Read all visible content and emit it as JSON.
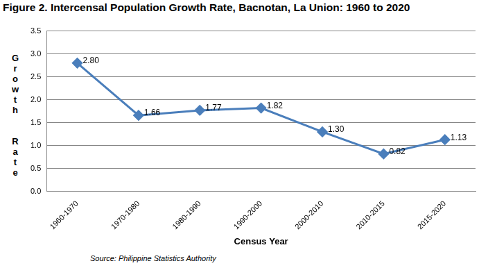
{
  "chart_data": {
    "type": "line",
    "title": "Figure 2. Intercensal Population Growth Rate, Bacnotan, La Union: 1960 to 2020",
    "x_label": "Census Year",
    "y_label": "Growth Rate",
    "source": "Source: Philippine Statistics Authority",
    "categories": [
      "1960-1970",
      "1970-1980",
      "1980-1990",
      "1990-2000",
      "2000-2010",
      "2010-2015",
      "2015-2020"
    ],
    "values": [
      2.8,
      1.66,
      1.77,
      1.82,
      1.3,
      0.82,
      1.13
    ],
    "value_labels": [
      "2.80",
      "1.66",
      "1.77",
      "1.82",
      "1.30",
      "0.82",
      "1.13"
    ],
    "color": "#4a7ebb",
    "marker": "diamond",
    "line_style": "solid",
    "data_labels": true,
    "ylim": [
      0,
      3.5
    ],
    "yticks": [
      {
        "value": 0,
        "label": "0.0"
      },
      {
        "value": 0.5,
        "label": "0.5"
      },
      {
        "value": 1,
        "label": "1.0"
      },
      {
        "value": 1.5,
        "label": "1.5"
      },
      {
        "value": 2,
        "label": "2.0"
      },
      {
        "value": 2.5,
        "label": "2.5"
      },
      {
        "value": 3,
        "label": "3.0"
      },
      {
        "value": 3.5,
        "label": "3.5"
      }
    ],
    "grid": true
  }
}
